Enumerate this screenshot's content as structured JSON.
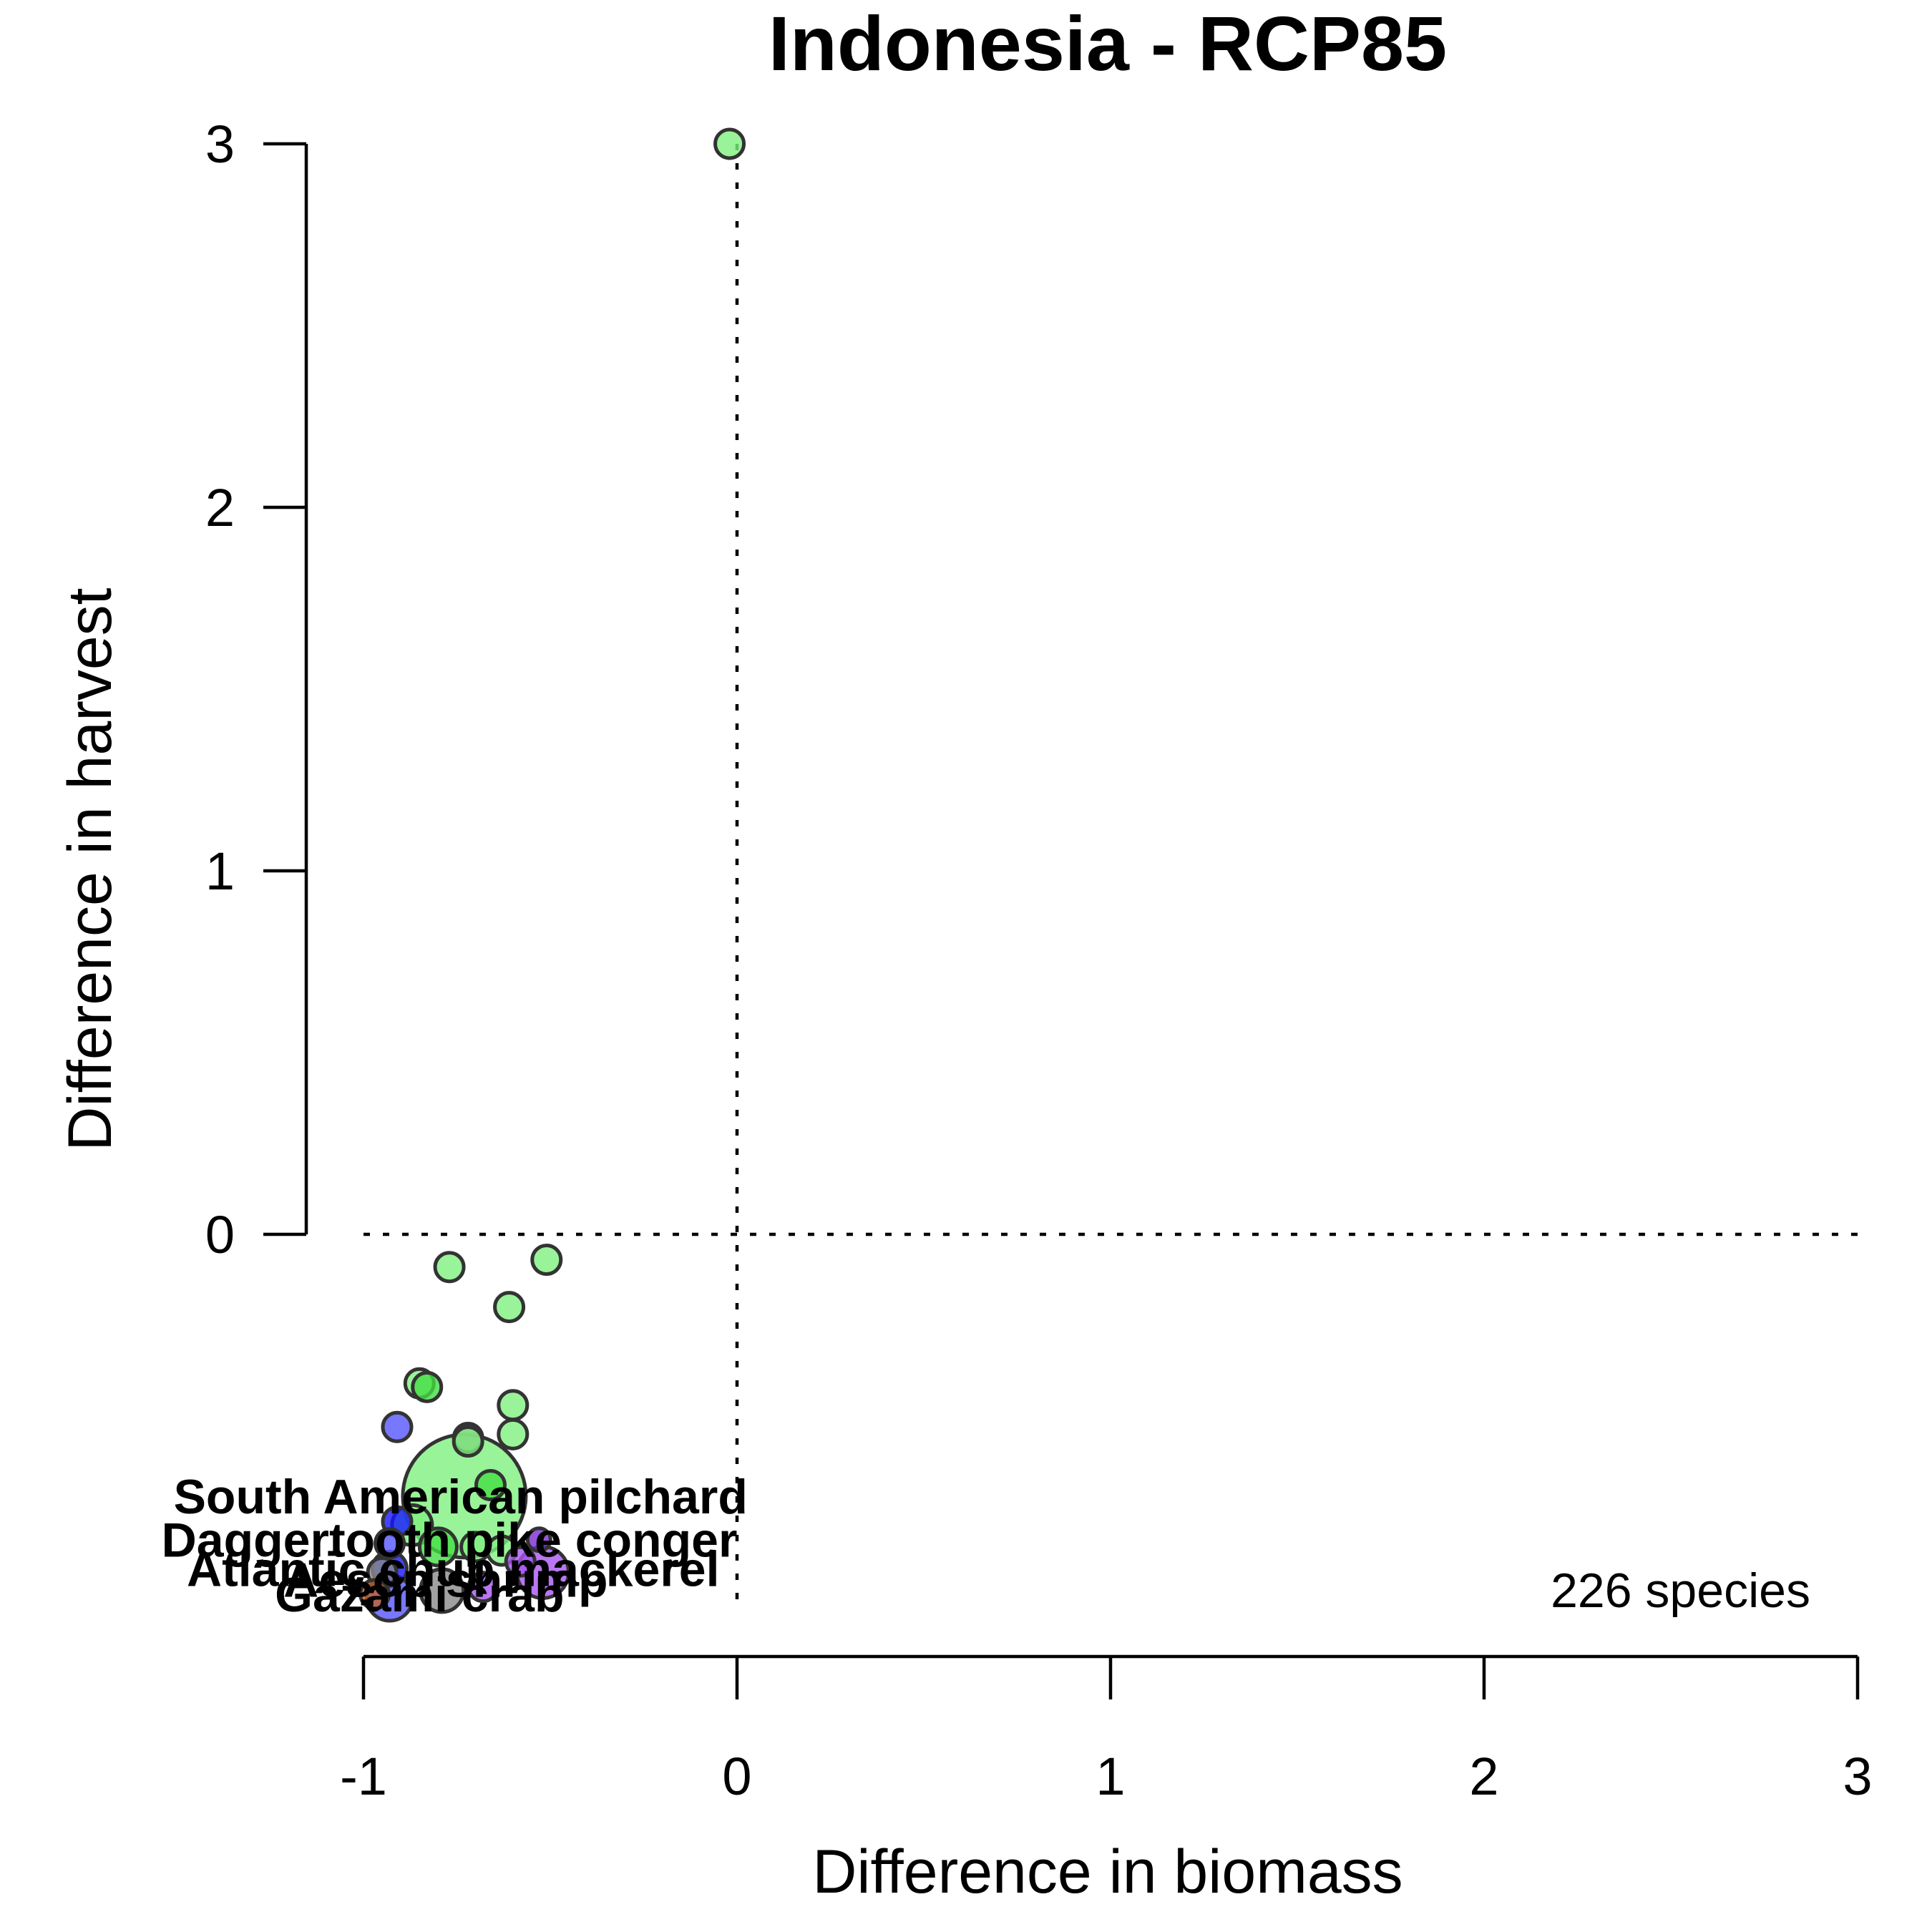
{
  "chart_data": {
    "type": "scatter",
    "title": "Indonesia - RCP85",
    "xlabel": "Difference in biomass",
    "ylabel": "Difference in harvest",
    "xlim": [
      -1,
      3
    ],
    "ylim": [
      -1.15,
      3
    ],
    "x_ticks": [
      "-1",
      "0",
      "1",
      "2",
      "3"
    ],
    "y_ticks": [
      "0",
      "1",
      "2",
      "3"
    ],
    "reference_lines": {
      "x": 0,
      "y": 0,
      "style": "dotted"
    },
    "grid": false,
    "legend": "none",
    "note": "226 species",
    "colors": {
      "green": "#80F080",
      "bright_green": "#44DD44",
      "blue": "#5555FF",
      "deep_blue": "#1515FF",
      "purple": "#A855F0",
      "dark_purple": "#7A2AD0",
      "brown": "#C0602A",
      "gray": "#8A8A8A",
      "outline": "#333333"
    },
    "points": [
      {
        "x": -0.02,
        "y": 3.0,
        "size": 1,
        "color": "green"
      },
      {
        "x": -0.77,
        "y": -0.09,
        "size": 1,
        "color": "green"
      },
      {
        "x": -0.51,
        "y": -0.07,
        "size": 1,
        "color": "green"
      },
      {
        "x": -0.61,
        "y": -0.2,
        "size": 1,
        "color": "green"
      },
      {
        "x": -0.85,
        "y": -0.41,
        "size": 1,
        "color": "green"
      },
      {
        "x": -0.83,
        "y": -0.42,
        "size": 1,
        "color": "bright_green"
      },
      {
        "x": -0.6,
        "y": -0.47,
        "size": 1,
        "color": "green"
      },
      {
        "x": -0.91,
        "y": -0.53,
        "size": 1,
        "color": "blue"
      },
      {
        "x": -0.6,
        "y": -0.55,
        "size": 1,
        "color": "green"
      },
      {
        "x": -0.72,
        "y": -0.56,
        "size": 1,
        "color": "gray"
      },
      {
        "x": -0.72,
        "y": -0.57,
        "size": 1,
        "color": "green"
      },
      {
        "x": -0.73,
        "y": -0.72,
        "size": 4.3,
        "color": "green"
      },
      {
        "x": -0.66,
        "y": -0.69,
        "size": 1,
        "color": "bright_green"
      },
      {
        "x": -0.87,
        "y": -0.8,
        "size": 1.4,
        "color": "green"
      },
      {
        "x": -0.91,
        "y": -0.79,
        "size": 1,
        "color": "deep_blue"
      },
      {
        "x": -0.93,
        "y": -0.85,
        "size": 1,
        "color": "blue"
      },
      {
        "x": -0.8,
        "y": -0.86,
        "size": 1.3,
        "color": "bright_green"
      },
      {
        "x": -0.7,
        "y": -0.86,
        "size": 1,
        "color": "green"
      },
      {
        "x": -0.63,
        "y": -0.87,
        "size": 1,
        "color": "green"
      },
      {
        "x": -0.52,
        "y": -0.93,
        "size": 1.8,
        "color": "purple"
      },
      {
        "x": -0.53,
        "y": -0.84,
        "size": 0.8,
        "color": "dark_purple"
      },
      {
        "x": -0.58,
        "y": -0.9,
        "size": 1,
        "color": "purple"
      },
      {
        "x": -0.93,
        "y": -0.92,
        "size": 1.2,
        "color": "deep_blue"
      },
      {
        "x": -0.95,
        "y": -0.93,
        "size": 1,
        "color": "gray"
      },
      {
        "x": -0.79,
        "y": -0.98,
        "size": 1.5,
        "color": "gray"
      },
      {
        "x": -0.68,
        "y": -0.97,
        "size": 1,
        "color": "purple"
      },
      {
        "x": -0.97,
        "y": -0.99,
        "size": 1,
        "color": "brown"
      },
      {
        "x": -0.93,
        "y": -1.0,
        "size": 1.6,
        "color": "blue"
      }
    ],
    "labels": [
      {
        "text": "South American pilchard",
        "x": -0.74,
        "y": -0.72
      },
      {
        "text": "Daggertooth pike conger",
        "x": -0.77,
        "y": -0.84
      },
      {
        "text": "Atlantic chub mackerel",
        "x": -0.76,
        "y": -0.92
      },
      {
        "text": "Aesop shrimp",
        "x": -0.78,
        "y": -0.95
      },
      {
        "text": "Gazami crab",
        "x": -0.85,
        "y": -0.99
      },
      {
        "text": "-",
        "x": -0.99,
        "y": -1.0
      }
    ]
  }
}
